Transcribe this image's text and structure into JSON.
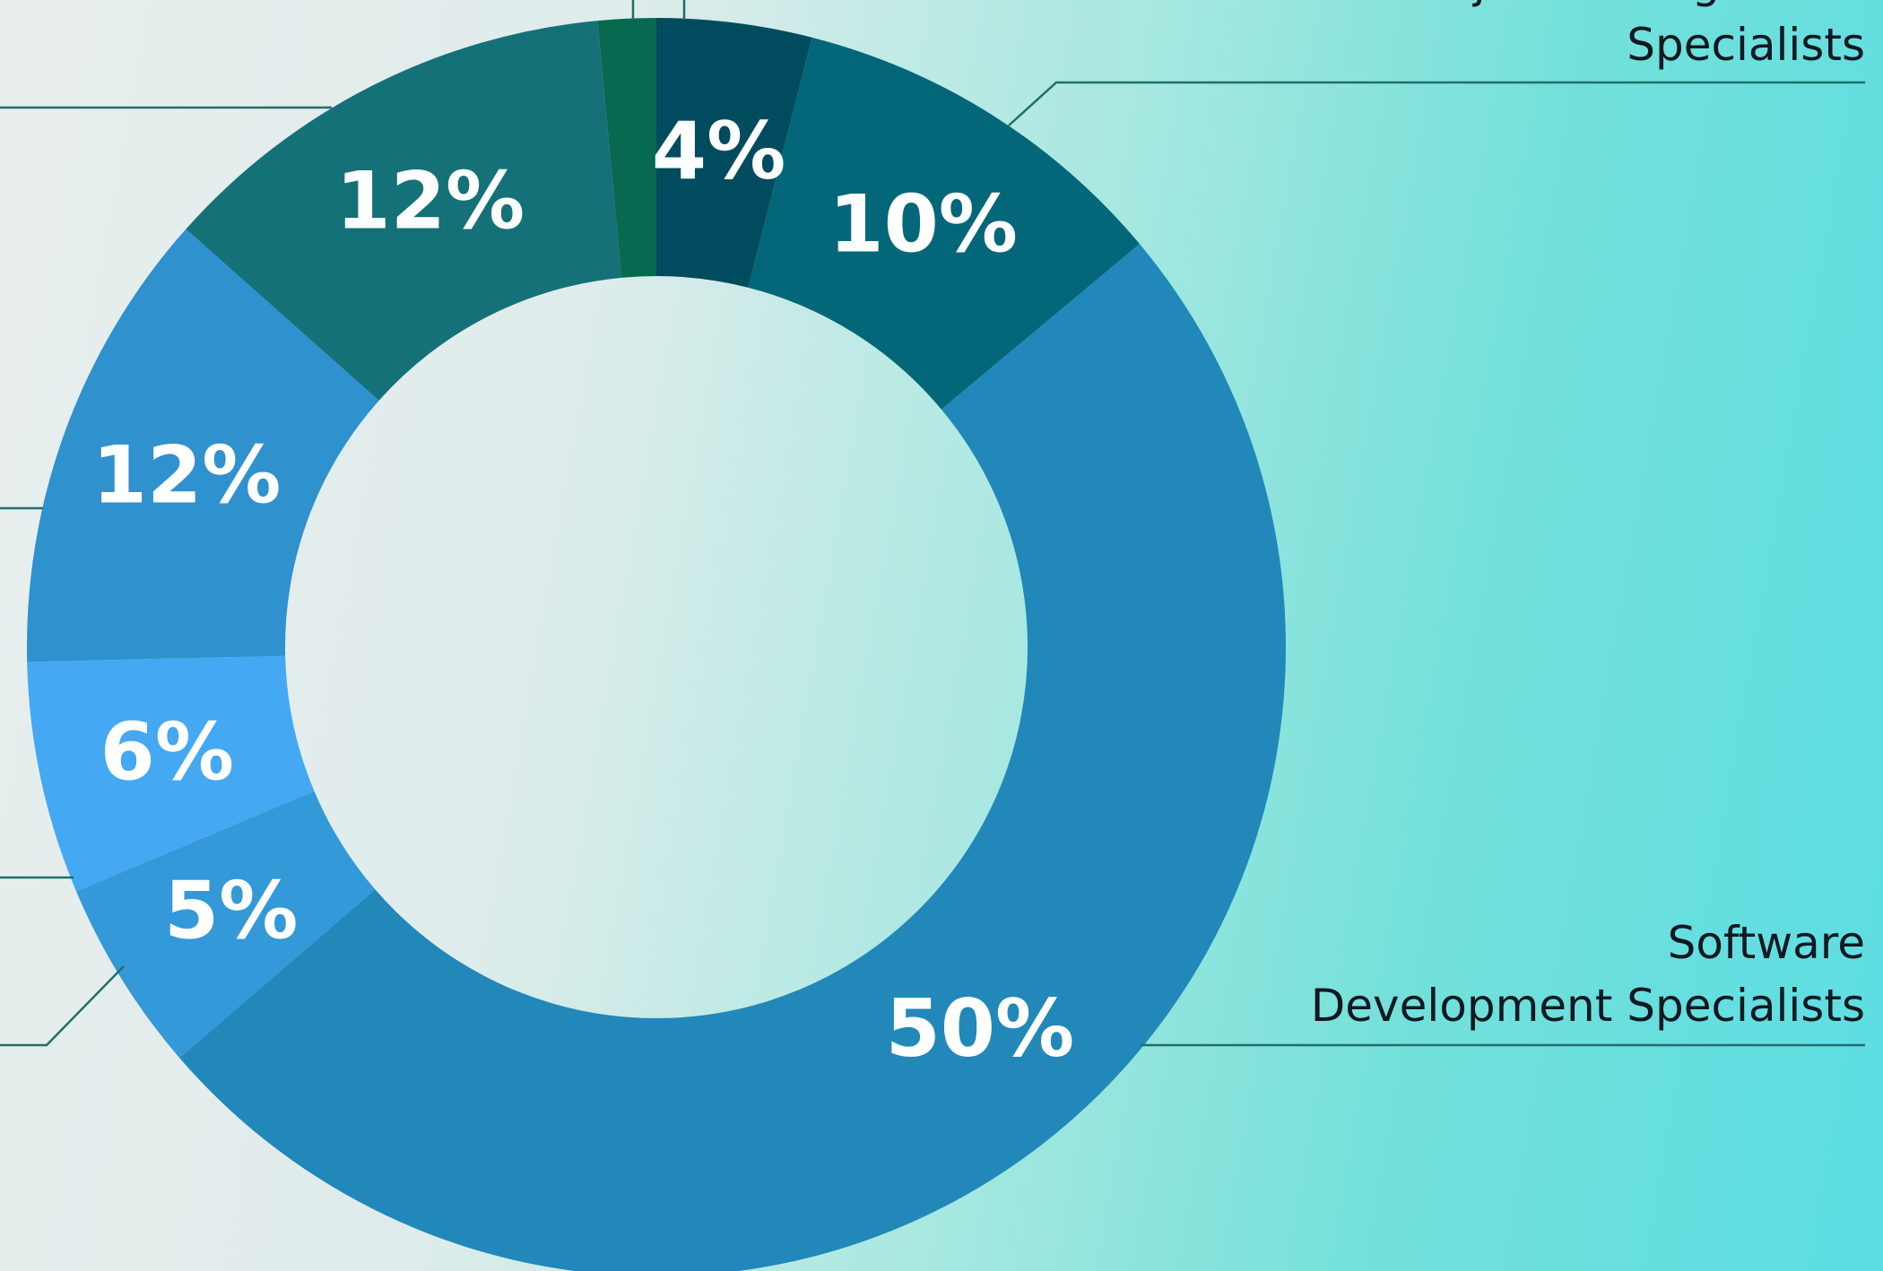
{
  "chart_data": {
    "type": "pie",
    "title": "",
    "categories": [
      "",
      "Project Management Specialists",
      "",
      "Software Development Specialists",
      "",
      "",
      "",
      "",
      ""
    ],
    "values": [
      1.5,
      4,
      10,
      50,
      5,
      6,
      12,
      12,
      0
    ],
    "data_labels": [
      "",
      "4%",
      "10%",
      "50%",
      "5%",
      "6%",
      "12%",
      "12%",
      ""
    ],
    "colors": [
      "#07694f",
      "#004c5e",
      "#036779",
      "#2188b9",
      "#3399d8",
      "#44a8f2",
      "#2f91ce",
      "#147178",
      "#147178"
    ],
    "annotations": [
      {
        "lines": [
          "Project Management",
          "Specialists"
        ]
      },
      {
        "lines": [
          "Software",
          "Development Specialists"
        ]
      }
    ]
  }
}
